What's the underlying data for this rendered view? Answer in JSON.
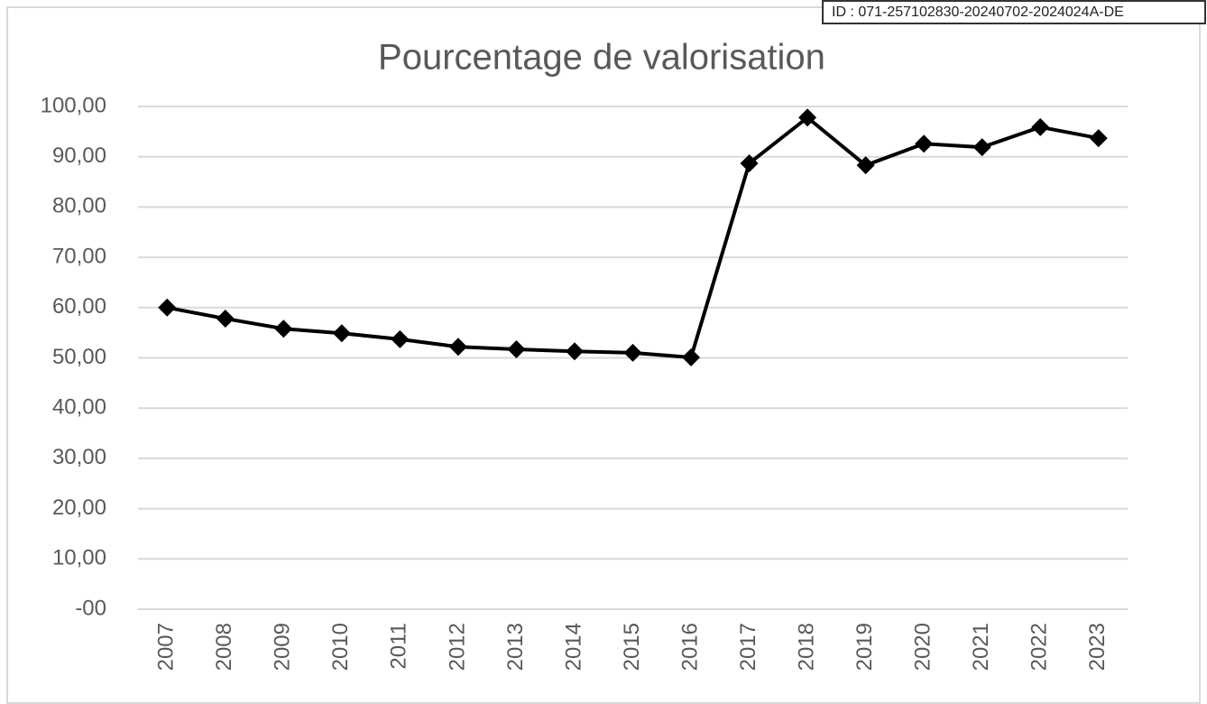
{
  "stamp": "ID : 071-257102830-20240702-2024024A-DE",
  "chart_data": {
    "type": "line",
    "title": "Pourcentage de valorisation",
    "categories": [
      "2007",
      "2008",
      "2009",
      "2010",
      "2011",
      "2012",
      "2013",
      "2014",
      "2015",
      "2016",
      "2017",
      "2018",
      "2019",
      "2020",
      "2021",
      "2022",
      "2023"
    ],
    "series": [
      {
        "name": "Pourcentage de valorisation",
        "color": "#000000",
        "values": [
          60.0,
          57.8,
          55.8,
          54.9,
          53.7,
          52.2,
          51.7,
          51.3,
          51.0,
          50.1,
          88.7,
          97.8,
          88.3,
          92.6,
          91.9,
          95.9,
          93.7
        ]
      }
    ],
    "ylim": [
      0,
      100
    ],
    "yticks": [
      {
        "value": 0,
        "label": "-00"
      },
      {
        "value": 10,
        "label": "10,00"
      },
      {
        "value": 20,
        "label": "20,00"
      },
      {
        "value": 30,
        "label": "30,00"
      },
      {
        "value": 40,
        "label": "40,00"
      },
      {
        "value": 50,
        "label": "50,00"
      },
      {
        "value": 60,
        "label": "60,00"
      },
      {
        "value": 70,
        "label": "70,00"
      },
      {
        "value": 80,
        "label": "80,00"
      },
      {
        "value": 90,
        "label": "90,00"
      },
      {
        "value": 100,
        "label": "100,00"
      }
    ],
    "grid": true,
    "marker": "diamond"
  }
}
